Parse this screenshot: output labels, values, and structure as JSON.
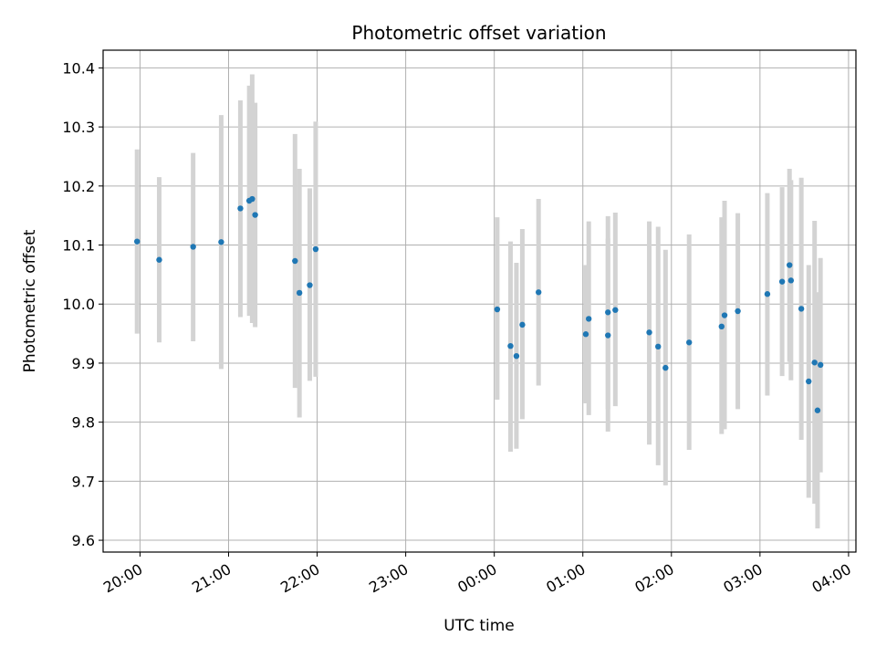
{
  "chart_data": {
    "type": "scatter",
    "title": "Photometric offset variation",
    "xlabel": "UTC time",
    "ylabel": "Photometric offset",
    "x_tick_labels": [
      "20:00",
      "21:00",
      "22:00",
      "23:00",
      "00:00",
      "01:00",
      "02:00",
      "03:00",
      "04:00"
    ],
    "y_tick_labels": [
      "9.6",
      "9.7",
      "9.8",
      "9.9",
      "10.0",
      "10.1",
      "10.2",
      "10.3",
      "10.4"
    ],
    "y_ticks": [
      9.6,
      9.7,
      9.8,
      9.9,
      10.0,
      10.1,
      10.2,
      10.3,
      10.4
    ],
    "xlim": [
      "19:35",
      "04:05"
    ],
    "ylim": [
      9.58,
      10.43
    ],
    "grid": true,
    "x_axis": "time, labels rotated 30 degrees",
    "colors": {
      "point": "#1f77b4",
      "errorbar": "#d3d3d3",
      "grid": "#b0b0b0"
    },
    "points": [
      {
        "t": "19:58",
        "y": 10.106,
        "lo": 9.95,
        "hi": 10.262
      },
      {
        "t": "20:13",
        "y": 10.075,
        "lo": 9.935,
        "hi": 10.215
      },
      {
        "t": "20:36",
        "y": 10.097,
        "lo": 9.937,
        "hi": 10.256
      },
      {
        "t": "20:55",
        "y": 10.105,
        "lo": 9.89,
        "hi": 10.32
      },
      {
        "t": "21:08",
        "y": 10.162,
        "lo": 9.978,
        "hi": 10.345
      },
      {
        "t": "21:14",
        "y": 10.175,
        "lo": 9.98,
        "hi": 10.37
      },
      {
        "t": "21:16",
        "y": 10.178,
        "lo": 9.968,
        "hi": 10.389
      },
      {
        "t": "21:18",
        "y": 10.151,
        "lo": 9.961,
        "hi": 10.341
      },
      {
        "t": "21:45",
        "y": 10.073,
        "lo": 9.858,
        "hi": 10.288
      },
      {
        "t": "21:48",
        "y": 10.019,
        "lo": 9.808,
        "hi": 10.229
      },
      {
        "t": "21:55",
        "y": 10.032,
        "lo": 9.87,
        "hi": 10.196
      },
      {
        "t": "21:59",
        "y": 10.093,
        "lo": 9.877,
        "hi": 10.309
      },
      {
        "t": "00:02",
        "y": 9.991,
        "lo": 9.838,
        "hi": 10.147
      },
      {
        "t": "00:11",
        "y": 9.929,
        "lo": 9.75,
        "hi": 10.106
      },
      {
        "t": "00:15",
        "y": 9.912,
        "lo": 9.755,
        "hi": 10.07
      },
      {
        "t": "00:19",
        "y": 9.965,
        "lo": 9.805,
        "hi": 10.127
      },
      {
        "t": "00:30",
        "y": 10.02,
        "lo": 9.862,
        "hi": 10.178
      },
      {
        "t": "01:02",
        "y": 9.949,
        "lo": 9.832,
        "hi": 10.066
      },
      {
        "t": "01:04",
        "y": 9.975,
        "lo": 9.812,
        "hi": 10.14
      },
      {
        "t": "01:17",
        "y": 9.947,
        "lo": 9.784,
        "hi": 10.111
      },
      {
        "t": "01:17",
        "y": 9.986,
        "lo": 9.822,
        "hi": 10.149
      },
      {
        "t": "01:22",
        "y": 9.99,
        "lo": 9.827,
        "hi": 10.155
      },
      {
        "t": "01:45",
        "y": 9.952,
        "lo": 9.762,
        "hi": 10.14
      },
      {
        "t": "01:51",
        "y": 9.928,
        "lo": 9.727,
        "hi": 10.131
      },
      {
        "t": "01:56",
        "y": 9.892,
        "lo": 9.693,
        "hi": 10.092
      },
      {
        "t": "02:12",
        "y": 9.935,
        "lo": 9.753,
        "hi": 10.118
      },
      {
        "t": "02:34",
        "y": 9.962,
        "lo": 9.78,
        "hi": 10.147
      },
      {
        "t": "02:36",
        "y": 9.981,
        "lo": 9.788,
        "hi": 10.175
      },
      {
        "t": "02:45",
        "y": 9.988,
        "lo": 9.822,
        "hi": 10.154
      },
      {
        "t": "03:05",
        "y": 10.017,
        "lo": 9.845,
        "hi": 10.188
      },
      {
        "t": "03:15",
        "y": 10.038,
        "lo": 9.878,
        "hi": 10.198
      },
      {
        "t": "03:20",
        "y": 10.066,
        "lo": 9.902,
        "hi": 10.229
      },
      {
        "t": "03:21",
        "y": 10.04,
        "lo": 9.871,
        "hi": 10.21
      },
      {
        "t": "03:28",
        "y": 9.992,
        "lo": 9.77,
        "hi": 10.214
      },
      {
        "t": "03:33",
        "y": 9.869,
        "lo": 9.672,
        "hi": 10.066
      },
      {
        "t": "03:37",
        "y": 9.901,
        "lo": 9.662,
        "hi": 10.141
      },
      {
        "t": "03:39",
        "y": 9.82,
        "lo": 9.62,
        "hi": 10.02
      },
      {
        "t": "03:41",
        "y": 9.897,
        "lo": 9.715,
        "hi": 10.078
      }
    ]
  }
}
